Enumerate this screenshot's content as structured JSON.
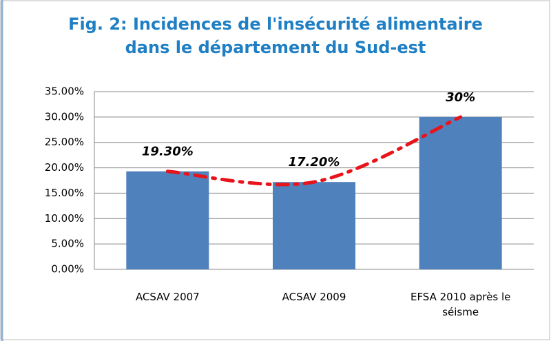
{
  "chart_data": {
    "type": "bar",
    "title": "Fig. 2: Incidences de l'insécurité alimentaire dans le département du Sud-est",
    "categories": [
      "ACSAV 2007",
      "ACSAV 2009",
      "EFSA  2010 après le séisme"
    ],
    "values": [
      19.3,
      17.2,
      30
    ],
    "value_labels": [
      "19.30%",
      "17.20%",
      "30%"
    ],
    "color": "#4f81bd",
    "trend_color": "#e8141b",
    "ylim": [
      0,
      35
    ],
    "yticks": [
      {
        "value": 0,
        "label": "0.00%"
      },
      {
        "value": 5,
        "label": "5.00%"
      },
      {
        "value": 10,
        "label": "10.00%"
      },
      {
        "value": 15,
        "label": "15.00%"
      },
      {
        "value": 20,
        "label": "20.00%"
      },
      {
        "value": 25,
        "label": "25.00%"
      },
      {
        "value": 30,
        "label": "30.00%"
      },
      {
        "value": 35,
        "label": "35.00%"
      }
    ],
    "grid": true
  }
}
